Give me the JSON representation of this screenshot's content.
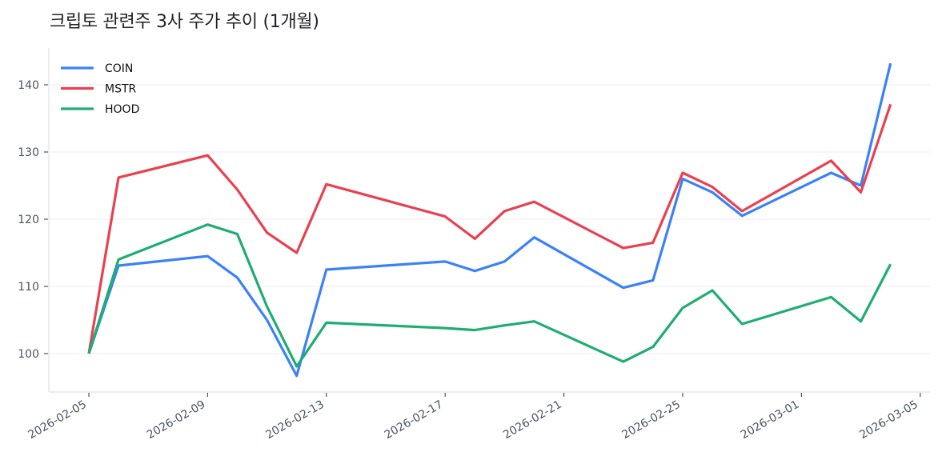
{
  "title": "크립토 관련주 3사 주가 추이 (1개월)",
  "chart_data": {
    "type": "line",
    "title": "크립토 관련주 3사 주가 추이 (1개월)",
    "xlabel": "",
    "ylabel": "",
    "ylim": [
      94.7,
      145.5
    ],
    "yticks": [
      100,
      110,
      120,
      130,
      140
    ],
    "xticks": [
      "2026-02-05",
      "2026-02-09",
      "2026-02-13",
      "2026-02-17",
      "2026-02-21",
      "2026-02-25",
      "2026-03-01",
      "2026-03-05"
    ],
    "grid": "horizontal",
    "legend_position": "upper left",
    "x": [
      "2026-02-05",
      "2026-02-06",
      "2026-02-09",
      "2026-02-10",
      "2026-02-11",
      "2026-02-12",
      "2026-02-13",
      "2026-02-17",
      "2026-02-18",
      "2026-02-19",
      "2026-02-20",
      "2026-02-23",
      "2026-02-24",
      "2026-02-25",
      "2026-02-26",
      "2026-02-27",
      "2026-03-02",
      "2026-03-03",
      "2026-03-04"
    ],
    "series": [
      {
        "name": "COIN",
        "color": "#3b82f6",
        "values": [
          100.0,
          113.1,
          114.5,
          111.3,
          105.0,
          96.7,
          112.5,
          113.7,
          112.3,
          113.7,
          117.3,
          109.8,
          110.9,
          126.0,
          124.0,
          120.5,
          126.9,
          125.0,
          143.2
        ]
      },
      {
        "name": "MSTR",
        "color": "#e8414f",
        "values": [
          100.0,
          126.2,
          129.5,
          124.4,
          118.0,
          115.0,
          125.2,
          120.4,
          117.1,
          121.2,
          122.6,
          115.7,
          116.5,
          126.9,
          124.8,
          121.2,
          128.7,
          124.0,
          137.1
        ]
      },
      {
        "name": "HOOD",
        "color": "#1fad72",
        "values": [
          100.0,
          114.0,
          119.2,
          117.8,
          107.0,
          98.1,
          104.6,
          103.8,
          103.5,
          104.2,
          104.8,
          98.8,
          101.0,
          106.8,
          109.4,
          104.4,
          108.4,
          104.8,
          113.3
        ]
      }
    ]
  },
  "colors": {
    "axis": "#e5e7eb",
    "grid": "#f1f1f3",
    "tick": "#4b5563"
  }
}
